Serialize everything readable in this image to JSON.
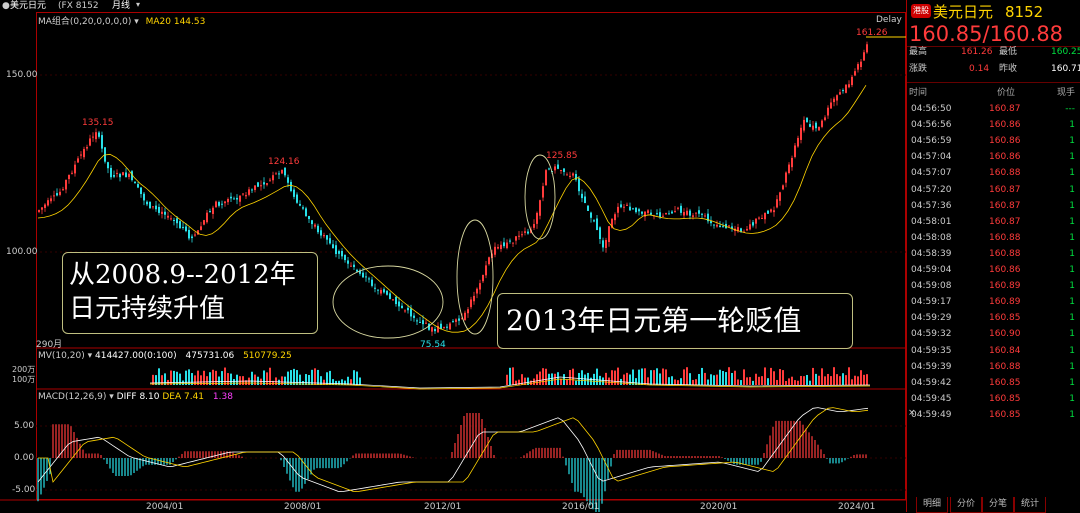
{
  "topbar": {
    "instrument": "美元日元",
    "code_label": "(FX 8152",
    "period": "月线"
  },
  "indicators": {
    "ma_label": "MA组合(0,20,0,0,0,0)",
    "ma20_label": "MA20 144.53",
    "mv_label": "MV(10,20)",
    "mv_vals": [
      "414427.00(0:100)",
      "475731.06",
      "510779.25"
    ],
    "macd_label": "MACD(12,26,9)",
    "diff_label": "DIFF 8.10",
    "dea_label": "DEA 7.41",
    "macd_val": "1.38"
  },
  "price_axis": {
    "ticks": [
      "150.00",
      "100.00"
    ],
    "bottom_label": "290月"
  },
  "volume_axis": {
    "ticks": [
      "200万",
      "100万"
    ]
  },
  "macd_axis": {
    "ticks": [
      "5.00",
      "0.00",
      "-5.00"
    ]
  },
  "x_axis": {
    "ticks": [
      "2004/01",
      "2008/01",
      "2012/01",
      "2016/01",
      "2020/01",
      "2024/01"
    ]
  },
  "price_marks": {
    "high1": "135.15",
    "high2": "124.16",
    "low1": "75.54",
    "high3": "125.85",
    "high4": "161.26",
    "delay": "Delay"
  },
  "annotations": {
    "box1_line1": "从2008.9--2012年",
    "box1_line2": "日元持续升值",
    "box2": "2013年日元第一轮贬值"
  },
  "quote": {
    "badge": "港股",
    "name": "美元日元",
    "code": "8152",
    "bid": "160.85",
    "ask": "160.88",
    "high_label": "最高",
    "high_val": "161.26",
    "low_label": "最低",
    "low_val": "160.25",
    "chg_label": "涨跌",
    "chg_val": "0.14",
    "prev_label": "昨收",
    "prev_val": "160.71"
  },
  "ticks_header": {
    "time": "时间",
    "price": "价位",
    "qty": "现手"
  },
  "ticks": [
    {
      "time": "04:56:50",
      "price": "160.87",
      "qty": "---"
    },
    {
      "time": "04:56:56",
      "price": "160.86",
      "qty": "1"
    },
    {
      "time": "04:56:59",
      "price": "160.86",
      "qty": "1"
    },
    {
      "time": "04:57:04",
      "price": "160.86",
      "qty": "1"
    },
    {
      "time": "04:57:07",
      "price": "160.88",
      "qty": "1"
    },
    {
      "time": "04:57:20",
      "price": "160.87",
      "qty": "1"
    },
    {
      "time": "04:57:36",
      "price": "160.87",
      "qty": "1"
    },
    {
      "time": "04:58:01",
      "price": "160.87",
      "qty": "1"
    },
    {
      "time": "04:58:08",
      "price": "160.88",
      "qty": "1"
    },
    {
      "time": "04:58:39",
      "price": "160.88",
      "qty": "1"
    },
    {
      "time": "04:59:04",
      "price": "160.86",
      "qty": "1"
    },
    {
      "time": "04:59:08",
      "price": "160.89",
      "qty": "1"
    },
    {
      "time": "04:59:17",
      "price": "160.89",
      "qty": "1"
    },
    {
      "time": "04:59:29",
      "price": "160.85",
      "qty": "1"
    },
    {
      "time": "04:59:32",
      "price": "160.90",
      "qty": "1"
    },
    {
      "time": "04:59:35",
      "price": "160.84",
      "qty": "1"
    },
    {
      "time": "04:59:39",
      "price": "160.88",
      "qty": "1"
    },
    {
      "time": "04:59:42",
      "price": "160.85",
      "qty": "1"
    },
    {
      "time": "04:59:45",
      "price": "160.85",
      "qty": "1"
    },
    {
      "time": "04:59:49",
      "price": "160.85",
      "qty": "1"
    }
  ],
  "tabs": [
    "明细",
    "分价",
    "分笔",
    "统计"
  ],
  "colors": {
    "up": "#ff3b3b",
    "down": "#28e0e8",
    "ma": "#ffd400",
    "panel_border": "#aa0000"
  }
}
